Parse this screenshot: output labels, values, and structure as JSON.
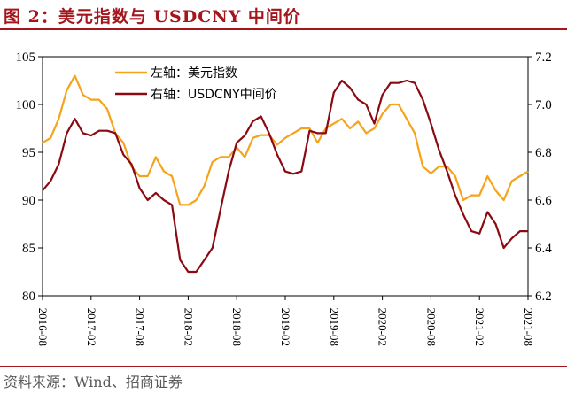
{
  "header": {
    "title": "图 2：美元指数与 USDCNY 中间价"
  },
  "footer": {
    "source": "资料来源：Wind、招商证券"
  },
  "chart_data": {
    "type": "line",
    "title": "图 2：美元指数与 USDCNY 中间价",
    "x_ticks": [
      "2016-08",
      "2017-02",
      "2017-08",
      "2018-02",
      "2018-08",
      "2019-02",
      "2019-08",
      "2020-02",
      "2020-08",
      "2021-02",
      "2021-08"
    ],
    "y_left": {
      "ticks": [
        80,
        85,
        90,
        95,
        100,
        105
      ],
      "range": [
        80,
        105
      ]
    },
    "y_right": {
      "ticks": [
        "6.2",
        "6.4",
        "6.6",
        "6.8",
        "7.0",
        "7.2"
      ],
      "range": [
        6.2,
        7.2
      ]
    },
    "legend_position": "top-left",
    "grid": false,
    "series": [
      {
        "name": "左轴：美元指数",
        "axis": "left",
        "color": "#f5a31a",
        "x": [
          "2016-08",
          "2016-09",
          "2016-10",
          "2016-11",
          "2016-12",
          "2017-01",
          "2017-02",
          "2017-03",
          "2017-04",
          "2017-05",
          "2017-06",
          "2017-07",
          "2017-08",
          "2017-09",
          "2017-10",
          "2017-11",
          "2017-12",
          "2018-01",
          "2018-02",
          "2018-03",
          "2018-04",
          "2018-05",
          "2018-06",
          "2018-07",
          "2018-08",
          "2018-09",
          "2018-10",
          "2018-11",
          "2018-12",
          "2019-01",
          "2019-02",
          "2019-03",
          "2019-04",
          "2019-05",
          "2019-06",
          "2019-07",
          "2019-08",
          "2019-09",
          "2019-10",
          "2019-11",
          "2019-12",
          "2020-01",
          "2020-02",
          "2020-03",
          "2020-04",
          "2020-05",
          "2020-06",
          "2020-07",
          "2020-08",
          "2020-09",
          "2020-10",
          "2020-11",
          "2020-12",
          "2021-01",
          "2021-02",
          "2021-03",
          "2021-04",
          "2021-05",
          "2021-06",
          "2021-07",
          "2021-08"
        ],
        "values": [
          96,
          96.5,
          98.5,
          101.5,
          103,
          101,
          100.5,
          100.5,
          99.5,
          97,
          96,
          93.5,
          92.5,
          92.5,
          94.5,
          93,
          92.5,
          89.5,
          89.5,
          90,
          91.5,
          94,
          94.5,
          94.5,
          95.5,
          94.5,
          96.5,
          96.8,
          96.8,
          95.8,
          96.5,
          97,
          97.5,
          97.5,
          96,
          97.5,
          98,
          98.5,
          97.5,
          98.2,
          97,
          97.5,
          99,
          100,
          100,
          98.5,
          97,
          93.5,
          92.8,
          93.5,
          93.5,
          92.5,
          90,
          90.5,
          90.5,
          92.5,
          91,
          90,
          92,
          92.5,
          93
        ]
      },
      {
        "name": "右轴：USDCNY中间价",
        "axis": "right",
        "color": "#8b0a12",
        "x": [
          "2016-08",
          "2016-09",
          "2016-10",
          "2016-11",
          "2016-12",
          "2017-01",
          "2017-02",
          "2017-03",
          "2017-04",
          "2017-05",
          "2017-06",
          "2017-07",
          "2017-08",
          "2017-09",
          "2017-10",
          "2017-11",
          "2017-12",
          "2018-01",
          "2018-02",
          "2018-03",
          "2018-04",
          "2018-05",
          "2018-06",
          "2018-07",
          "2018-08",
          "2018-09",
          "2018-10",
          "2018-11",
          "2018-12",
          "2019-01",
          "2019-02",
          "2019-03",
          "2019-04",
          "2019-05",
          "2019-06",
          "2019-07",
          "2019-08",
          "2019-09",
          "2019-10",
          "2019-11",
          "2019-12",
          "2020-01",
          "2020-02",
          "2020-03",
          "2020-04",
          "2020-05",
          "2020-06",
          "2020-07",
          "2020-08",
          "2020-09",
          "2020-10",
          "2020-11",
          "2020-12",
          "2021-01",
          "2021-02",
          "2021-03",
          "2021-04",
          "2021-05",
          "2021-06",
          "2021-07",
          "2021-08"
        ],
        "values": [
          6.64,
          6.68,
          6.75,
          6.88,
          6.94,
          6.88,
          6.87,
          6.89,
          6.89,
          6.88,
          6.79,
          6.75,
          6.65,
          6.6,
          6.63,
          6.6,
          6.58,
          6.35,
          6.3,
          6.3,
          6.35,
          6.4,
          6.56,
          6.72,
          6.84,
          6.87,
          6.93,
          6.95,
          6.88,
          6.79,
          6.72,
          6.71,
          6.72,
          6.89,
          6.88,
          6.88,
          7.05,
          7.1,
          7.07,
          7.02,
          7.0,
          6.92,
          7.04,
          7.09,
          7.09,
          7.1,
          7.09,
          7.02,
          6.92,
          6.81,
          6.72,
          6.62,
          6.54,
          6.47,
          6.46,
          6.55,
          6.5,
          6.4,
          6.44,
          6.47,
          6.47
        ]
      }
    ]
  }
}
